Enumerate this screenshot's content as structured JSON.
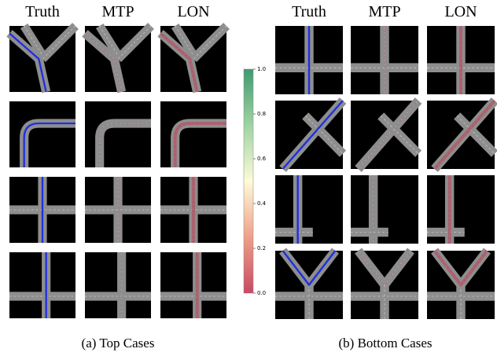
{
  "groups": [
    {
      "columns": [
        "Truth",
        "MTP",
        "LON"
      ],
      "caption": "(a) Top Cases"
    },
    {
      "columns": [
        "Truth",
        "MTP",
        "LON"
      ],
      "caption": "(b) Bottom Cases"
    }
  ],
  "colorbar": {
    "lim": [
      0,
      1
    ],
    "ticks": [
      {
        "value": 0,
        "label": "0.0"
      },
      {
        "value": 0.2,
        "label": "0.2"
      },
      {
        "value": 0.4,
        "label": "0.4"
      },
      {
        "value": 0.6,
        "label": "0.6"
      },
      {
        "value": 0.8,
        "label": "0.8"
      },
      {
        "value": 1,
        "label": "1.0"
      }
    ]
  }
}
